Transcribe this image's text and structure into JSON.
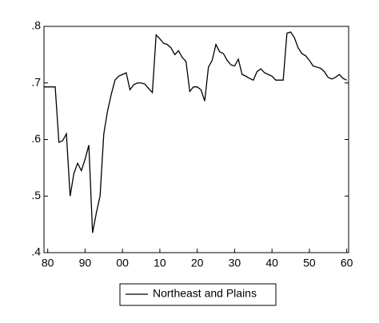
{
  "chart_data": {
    "type": "line",
    "x": [
      1979,
      1980,
      1981,
      1982,
      1983,
      1984,
      1985,
      1986,
      1987,
      1988,
      1989,
      1990,
      1991,
      1992,
      1993,
      1994,
      1995,
      1996,
      1997,
      1998,
      1999,
      2000,
      2001,
      2002,
      2003,
      2004,
      2005,
      2006,
      2007,
      2008,
      2009,
      2010,
      2011,
      2012,
      2013,
      2014,
      2015,
      2016,
      2017,
      2018,
      2019,
      2020,
      2021,
      2022,
      2023,
      2024,
      2025,
      2026,
      2027,
      2028,
      2029,
      2030,
      2031,
      2032,
      2033,
      2034,
      2035,
      2036,
      2037,
      2038,
      2039,
      2040,
      2041,
      2042,
      2043,
      2044,
      2045,
      2046,
      2047,
      2048,
      2049,
      2050,
      2051,
      2052,
      2053,
      2054,
      2055,
      2056,
      2057,
      2058,
      2059,
      2060
    ],
    "series": [
      {
        "name": "Northeast and Plains",
        "color": "#000000",
        "values": [
          0.693,
          0.693,
          0.693,
          0.693,
          0.595,
          0.598,
          0.61,
          0.5,
          0.54,
          0.558,
          0.545,
          0.565,
          0.59,
          0.435,
          0.47,
          0.5,
          0.61,
          0.65,
          0.68,
          0.705,
          0.712,
          0.715,
          0.718,
          0.688,
          0.697,
          0.7,
          0.7,
          0.698,
          0.69,
          0.683,
          0.785,
          0.778,
          0.77,
          0.768,
          0.762,
          0.75,
          0.757,
          0.745,
          0.738,
          0.685,
          0.693,
          0.693,
          0.688,
          0.668,
          0.728,
          0.74,
          0.768,
          0.755,
          0.752,
          0.74,
          0.732,
          0.73,
          0.742,
          0.715,
          0.712,
          0.708,
          0.705,
          0.72,
          0.725,
          0.718,
          0.715,
          0.712,
          0.705,
          0.705,
          0.705,
          0.788,
          0.79,
          0.78,
          0.762,
          0.752,
          0.748,
          0.74,
          0.73,
          0.728,
          0.726,
          0.72,
          0.71,
          0.707,
          0.71,
          0.715,
          0.708,
          0.705
        ]
      }
    ],
    "xlim": [
      1979,
      2060.5
    ],
    "xticks": [
      {
        "value": 1980,
        "label": "80"
      },
      {
        "value": 1990,
        "label": "90"
      },
      {
        "value": 2000,
        "label": "00"
      },
      {
        "value": 2010,
        "label": "10"
      },
      {
        "value": 2020,
        "label": "20"
      },
      {
        "value": 2030,
        "label": "30"
      },
      {
        "value": 2040,
        "label": "40"
      },
      {
        "value": 2050,
        "label": "50"
      },
      {
        "value": 2060,
        "label": "60"
      }
    ],
    "ylim": [
      0.4,
      0.8
    ],
    "yticks": [
      {
        "value": 0.4,
        "label": ".4"
      },
      {
        "value": 0.5,
        "label": ".5"
      },
      {
        "value": 0.6,
        "label": ".6"
      },
      {
        "value": 0.7,
        "label": ".7"
      },
      {
        "value": 0.8,
        "label": ".8"
      }
    ],
    "legend": "bottom"
  }
}
